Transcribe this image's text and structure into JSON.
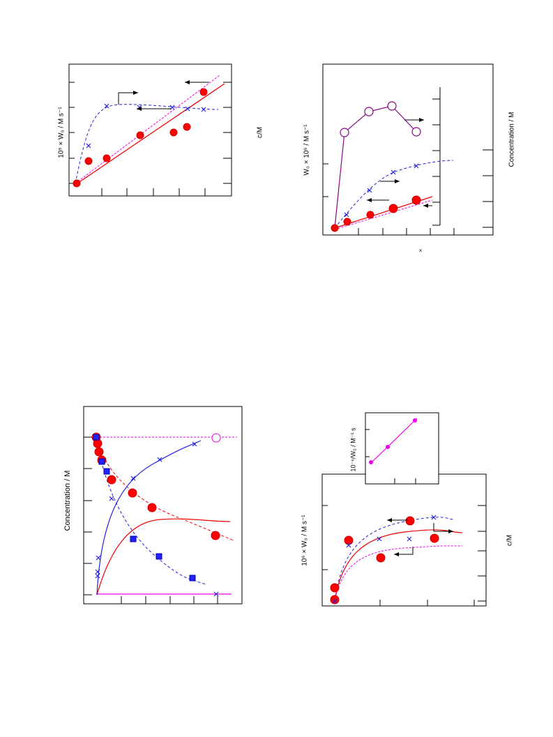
{
  "figures": [
    {
      "y_label": "10⁵ × W₀ / M s⁻¹",
      "y2_label": "c/M"
    },
    {
      "y_label": "W₀ × 10⁶ / M s⁻¹",
      "y2_label": "Concentration / M",
      "x_label": "×"
    },
    {
      "y_label": "Concentration / M"
    },
    {
      "inset_y_label": "10⁻⁶/W₀ / M⁻¹ s",
      "y_label": "10⁶ × W₀ / M s⁻¹",
      "y2_label": "c/M"
    }
  ]
}
